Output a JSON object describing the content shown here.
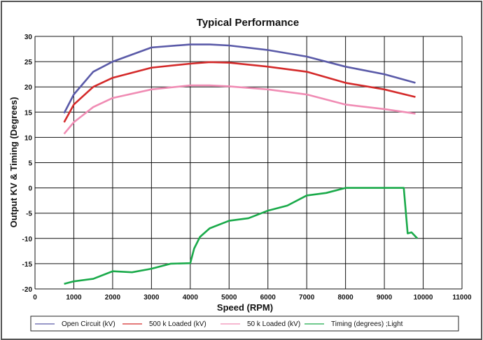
{
  "chart_data": {
    "type": "line",
    "title": "Typical Performance",
    "xlabel": "Speed (RPM)",
    "ylabel": "Output KV & Timing (Degrees)",
    "xlim": [
      0,
      11000
    ],
    "ylim": [
      -20,
      30
    ],
    "xticks": [
      0,
      1000,
      2000,
      3000,
      4000,
      5000,
      6000,
      7000,
      8000,
      9000,
      10000,
      11000
    ],
    "yticks": [
      30,
      25,
      20,
      15,
      10,
      5,
      0,
      -5,
      -10,
      -15,
      -20
    ],
    "grid": true,
    "legend_position": "bottom",
    "series": [
      {
        "name": "Open Circuit (kV)",
        "color": "#5a5aa8",
        "x": [
          750,
          1000,
          1500,
          2000,
          3000,
          4000,
          4500,
          5000,
          6000,
          7000,
          8000,
          9000,
          9800
        ],
        "y": [
          14.8,
          18.5,
          23,
          25,
          27.8,
          28.4,
          28.4,
          28.2,
          27.3,
          26,
          24,
          22.5,
          20.8
        ]
      },
      {
        "name": "500 k Loaded (kV)",
        "color": "#d42a2a",
        "x": [
          750,
          1000,
          1500,
          2000,
          3000,
          4000,
          4500,
          5000,
          6000,
          7000,
          8000,
          9000,
          9800
        ],
        "y": [
          13,
          16.5,
          20,
          21.8,
          23.8,
          24.6,
          24.9,
          24.8,
          24,
          23,
          20.8,
          19.5,
          18
        ]
      },
      {
        "name": "50 k Loaded (kV)",
        "color": "#f08cb4",
        "x": [
          750,
          1000,
          1500,
          2000,
          3000,
          4000,
          4500,
          5000,
          6000,
          7000,
          8000,
          9000,
          9800
        ],
        "y": [
          10.7,
          13,
          16,
          17.8,
          19.5,
          20.3,
          20.3,
          20.1,
          19.5,
          18.5,
          16.5,
          15.6,
          14.7
        ]
      },
      {
        "name": "Timing (degrees) ;Light",
        "color": "#1aaa4a",
        "x": [
          750,
          1000,
          1500,
          2000,
          2500,
          3000,
          3500,
          4000,
          4100,
          4250,
          4500,
          5000,
          5500,
          6000,
          6500,
          7000,
          7500,
          8000,
          8500,
          9000,
          9500,
          9600,
          9700,
          9850
        ],
        "y": [
          -19,
          -18.5,
          -18,
          -16.5,
          -16.7,
          -16,
          -15,
          -14.9,
          -12,
          -9.7,
          -8,
          -6.5,
          -6,
          -4.5,
          -3.5,
          -1.5,
          -1,
          0,
          0,
          0,
          0,
          -9,
          -8.8,
          -10
        ]
      }
    ]
  }
}
